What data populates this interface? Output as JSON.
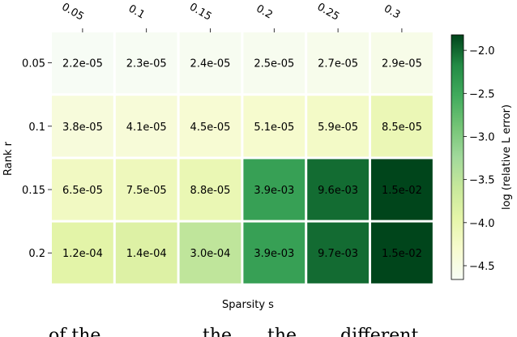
{
  "chart_data": {
    "type": "heatmap",
    "xlabel": "Sparsity s",
    "ylabel": "Rank r",
    "x_categories": [
      "0.05",
      "0.1",
      "0.15",
      "0.2",
      "0.25",
      "0.3"
    ],
    "y_categories": [
      "0.05",
      "0.1",
      "0.15",
      "0.2"
    ],
    "cell_labels": [
      [
        "2.2e-05",
        "2.3e-05",
        "2.4e-05",
        "2.5e-05",
        "2.7e-05",
        "2.9e-05"
      ],
      [
        "3.8e-05",
        "4.1e-05",
        "4.5e-05",
        "5.1e-05",
        "5.9e-05",
        "8.5e-05"
      ],
      [
        "6.5e-05",
        "7.5e-05",
        "8.8e-05",
        "3.9e-03",
        "9.6e-03",
        "1.5e-02"
      ],
      [
        "1.2e-04",
        "1.4e-04",
        "3.0e-04",
        "3.9e-03",
        "9.7e-03",
        "1.5e-02"
      ]
    ],
    "values": [
      [
        2.2e-05,
        2.3e-05,
        2.4e-05,
        2.5e-05,
        2.7e-05,
        2.9e-05
      ],
      [
        3.8e-05,
        4.1e-05,
        4.5e-05,
        5.1e-05,
        5.9e-05,
        8.5e-05
      ],
      [
        6.5e-05,
        7.5e-05,
        8.8e-05,
        0.0039,
        0.0096,
        0.015
      ],
      [
        0.00012,
        0.00014,
        0.0003,
        0.0039,
        0.0097,
        0.015
      ]
    ],
    "colorbar": {
      "label": "log (relative L error)",
      "range": [
        -4.66,
        -1.82
      ],
      "ticks": [
        "−2.0",
        "−2.5",
        "−3.0",
        "−3.5",
        "−4.0",
        "−4.5"
      ],
      "tick_values": [
        -2.0,
        -2.5,
        -3.0,
        -3.5,
        -4.0,
        -4.5
      ],
      "colormap": "Greens"
    }
  },
  "caption_fragment": "of the ... ... the ... the different ..."
}
